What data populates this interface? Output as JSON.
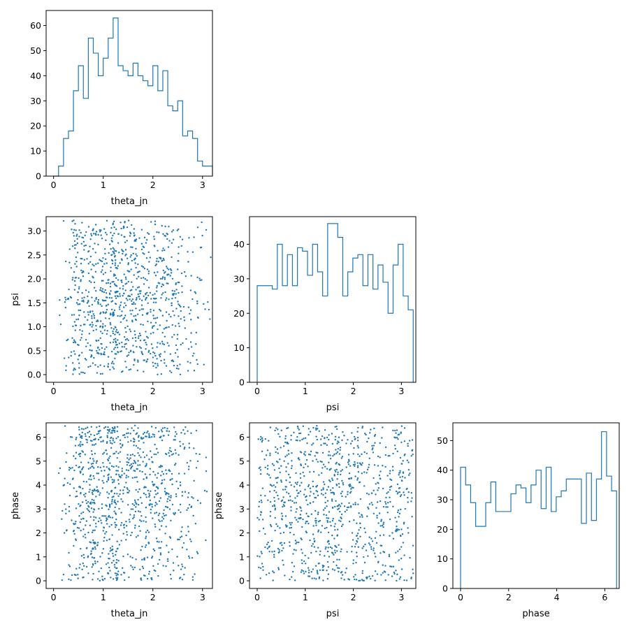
{
  "colors": {
    "series": "#1f77b4"
  },
  "chart_data": [
    {
      "id": "hist-theta_jn",
      "type": "histogram",
      "xlabel": "theta_jn",
      "ylabel": "",
      "xlim": [
        -0.15,
        3.2
      ],
      "ylim": [
        0,
        66
      ],
      "xticks": [
        0,
        1,
        2,
        3
      ],
      "yticks": [
        0,
        10,
        20,
        30,
        40,
        50,
        60
      ],
      "bin_start": 0.0,
      "bin_width": 0.1,
      "counts": [
        0,
        4,
        15,
        18,
        34,
        44,
        31,
        55,
        49,
        40,
        47,
        55,
        63,
        44,
        42,
        40,
        45,
        40,
        38,
        36,
        44,
        34,
        42,
        28,
        26,
        30,
        16,
        18,
        15,
        6,
        4,
        4
      ]
    },
    {
      "id": "scatter-theta_jn-psi",
      "type": "scatter",
      "xlabel": "theta_jn",
      "ylabel": "psi",
      "xlim": [
        -0.15,
        3.2
      ],
      "ylim": [
        -0.16,
        3.3
      ],
      "xticks": [
        0,
        1,
        2,
        3
      ],
      "yticks": [
        0.0,
        0.5,
        1.0,
        1.5,
        2.0,
        2.5,
        3.0
      ],
      "x_source": "theta_jn",
      "y_source": "psi",
      "n_points": 1000
    },
    {
      "id": "hist-psi",
      "type": "histogram",
      "xlabel": "psi",
      "ylabel": "",
      "xlim": [
        -0.16,
        3.3
      ],
      "ylim": [
        0,
        48
      ],
      "xticks": [
        0,
        1,
        2,
        3
      ],
      "yticks": [
        0,
        10,
        20,
        30,
        40
      ],
      "bin_start": 0.0,
      "bin_width": 0.1047,
      "counts": [
        28,
        28,
        28,
        27,
        40,
        28,
        37,
        28,
        39,
        38,
        31,
        40,
        32,
        25,
        46,
        46,
        42,
        25,
        32,
        36,
        37,
        28,
        37,
        27,
        34,
        29,
        20,
        34,
        40,
        25,
        21
      ]
    },
    {
      "id": "scatter-theta_jn-phase",
      "type": "scatter",
      "xlabel": "theta_jn",
      "ylabel": "phase",
      "xlim": [
        -0.15,
        3.2
      ],
      "ylim": [
        -0.32,
        6.6
      ],
      "xticks": [
        0,
        1,
        2,
        3
      ],
      "yticks": [
        0,
        1,
        2,
        3,
        4,
        5,
        6
      ],
      "x_source": "theta_jn",
      "y_source": "phase",
      "n_points": 1000
    },
    {
      "id": "scatter-psi-phase",
      "type": "scatter",
      "xlabel": "psi",
      "ylabel": "phase",
      "xlim": [
        -0.16,
        3.3
      ],
      "ylim": [
        -0.32,
        6.6
      ],
      "xticks": [
        0,
        1,
        2,
        3
      ],
      "yticks": [
        0,
        1,
        2,
        3,
        4,
        5,
        6
      ],
      "x_source": "psi",
      "y_source": "phase",
      "n_points": 1000
    },
    {
      "id": "hist-phase",
      "type": "histogram",
      "xlabel": "phase",
      "ylabel": "",
      "xlim": [
        -0.32,
        6.6
      ],
      "ylim": [
        0,
        56
      ],
      "xticks": [
        0,
        2,
        4,
        6
      ],
      "yticks": [
        0,
        10,
        20,
        30,
        40,
        50
      ],
      "bin_start": 0.0,
      "bin_width": 0.2094,
      "counts": [
        41,
        35,
        29,
        21,
        21,
        29,
        36,
        26,
        26,
        26,
        32,
        35,
        34,
        29,
        35,
        40,
        27,
        41,
        26,
        31,
        33,
        37,
        37,
        37,
        22,
        39,
        23,
        37,
        53,
        38,
        33
      ]
    }
  ]
}
